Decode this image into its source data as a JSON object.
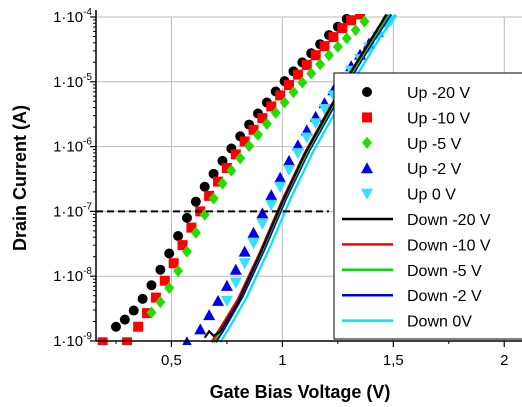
{
  "chart_data": {
    "type": "scatter",
    "title": "",
    "xlabel": "Gate Bias Voltage (V)",
    "ylabel": "Drain Current (A)",
    "xlim": [
      0.16,
      2.08
    ],
    "ylim_exponent": [
      -9,
      -4
    ],
    "y_scale": "log",
    "grid": true,
    "legend_position": "right",
    "x_ticks": [
      {
        "value": 0.5,
        "label": "0,5"
      },
      {
        "value": 1,
        "label": "1"
      },
      {
        "value": 1.5,
        "label": "1,5"
      },
      {
        "value": 2,
        "label": "2"
      }
    ],
    "y_ticks": [
      {
        "exp": -4,
        "base": "1·10",
        "sup": "-4"
      },
      {
        "exp": -5,
        "base": "1·10",
        "sup": "-5"
      },
      {
        "exp": -6,
        "base": "1·10",
        "sup": "-6"
      },
      {
        "exp": -7,
        "base": "1·10",
        "sup": "-7"
      },
      {
        "exp": -8,
        "base": "1·10",
        "sup": "-8"
      },
      {
        "exp": -9,
        "base": "1·10",
        "sup": "-9"
      }
    ],
    "threshold_line": {
      "y_exp": -7,
      "x_range": [
        0.16,
        1.21
      ]
    },
    "series": [
      {
        "name": "Up -20 V",
        "marker": "circle",
        "color": "#000000",
        "points": [
          [
            0.25,
            -8.78
          ],
          [
            0.29,
            -8.67
          ],
          [
            0.33,
            -8.53
          ],
          [
            0.37,
            -8.35
          ],
          [
            0.41,
            -8.14
          ],
          [
            0.45,
            -7.9
          ],
          [
            0.49,
            -7.65
          ],
          [
            0.53,
            -7.38
          ],
          [
            0.57,
            -7.1
          ],
          [
            0.61,
            -6.85
          ],
          [
            0.65,
            -6.62
          ],
          [
            0.69,
            -6.42
          ],
          [
            0.73,
            -6.22
          ],
          [
            0.77,
            -6.03
          ],
          [
            0.81,
            -5.84
          ],
          [
            0.85,
            -5.66
          ],
          [
            0.89,
            -5.49
          ],
          [
            0.93,
            -5.32
          ],
          [
            0.97,
            -5.15
          ],
          [
            1.01,
            -4.99
          ],
          [
            1.05,
            -4.84
          ],
          [
            1.09,
            -4.7
          ],
          [
            1.13,
            -4.56
          ],
          [
            1.17,
            -4.42
          ],
          [
            1.21,
            -4.28
          ],
          [
            1.25,
            -4.15
          ],
          [
            1.29,
            -4.03
          ]
        ]
      },
      {
        "name": "Up -10 V",
        "marker": "square",
        "color": "#ff0000",
        "points": [
          [
            0.19,
            -9.02
          ],
          [
            0.3,
            -9.02
          ],
          [
            0.35,
            -8.78
          ],
          [
            0.39,
            -8.57
          ],
          [
            0.43,
            -8.33
          ],
          [
            0.47,
            -8.07
          ],
          [
            0.51,
            -7.8
          ],
          [
            0.55,
            -7.52
          ],
          [
            0.59,
            -7.25
          ],
          [
            0.63,
            -7.0
          ],
          [
            0.67,
            -6.76
          ],
          [
            0.71,
            -6.54
          ],
          [
            0.75,
            -6.33
          ],
          [
            0.79,
            -6.12
          ],
          [
            0.83,
            -5.92
          ],
          [
            0.87,
            -5.74
          ],
          [
            0.91,
            -5.56
          ],
          [
            0.95,
            -5.38
          ],
          [
            0.99,
            -5.21
          ],
          [
            1.03,
            -5.05
          ],
          [
            1.07,
            -4.89
          ],
          [
            1.11,
            -4.74
          ],
          [
            1.15,
            -4.59
          ],
          [
            1.19,
            -4.45
          ],
          [
            1.23,
            -4.31
          ],
          [
            1.27,
            -4.17
          ],
          [
            1.31,
            -4.05
          ],
          [
            1.35,
            -3.96
          ]
        ]
      },
      {
        "name": "Up -5 V",
        "marker": "diamond",
        "color": "#22dd00",
        "points": [
          [
            0.41,
            -8.56
          ],
          [
            0.45,
            -8.4
          ],
          [
            0.49,
            -8.18
          ],
          [
            0.53,
            -7.92
          ],
          [
            0.57,
            -7.62
          ],
          [
            0.61,
            -7.33
          ],
          [
            0.65,
            -7.05
          ],
          [
            0.69,
            -6.8
          ],
          [
            0.73,
            -6.57
          ],
          [
            0.77,
            -6.37
          ],
          [
            0.81,
            -6.18
          ],
          [
            0.85,
            -5.99
          ],
          [
            0.89,
            -5.82
          ],
          [
            0.93,
            -5.65
          ],
          [
            0.97,
            -5.48
          ],
          [
            1.01,
            -5.32
          ],
          [
            1.05,
            -5.16
          ],
          [
            1.09,
            -5.01
          ],
          [
            1.13,
            -4.87
          ],
          [
            1.17,
            -4.73
          ],
          [
            1.21,
            -4.59
          ],
          [
            1.25,
            -4.46
          ],
          [
            1.29,
            -4.33
          ],
          [
            1.33,
            -4.2
          ],
          [
            1.37,
            -4.07
          ]
        ]
      },
      {
        "name": "Up -2 V",
        "marker": "triangle-up",
        "color": "#0000ee",
        "points": [
          [
            0.57,
            -9.02
          ],
          [
            0.63,
            -8.82
          ],
          [
            0.67,
            -8.6
          ],
          [
            0.71,
            -8.38
          ],
          [
            0.75,
            -8.15
          ],
          [
            0.79,
            -7.9
          ],
          [
            0.83,
            -7.62
          ],
          [
            0.87,
            -7.33
          ],
          [
            0.91,
            -7.03
          ],
          [
            0.95,
            -6.75
          ],
          [
            0.99,
            -6.48
          ],
          [
            1.03,
            -6.22
          ],
          [
            1.07,
            -5.98
          ],
          [
            1.11,
            -5.75
          ],
          [
            1.15,
            -5.54
          ],
          [
            1.19,
            -5.33
          ],
          [
            1.23,
            -5.13
          ],
          [
            1.27,
            -4.94
          ],
          [
            1.31,
            -4.76
          ],
          [
            1.35,
            -4.58
          ],
          [
            1.39,
            -4.41
          ],
          [
            1.43,
            -4.23
          ],
          [
            1.46,
            -4.06
          ]
        ]
      },
      {
        "name": "Up 0 V",
        "marker": "triangle-down",
        "color": "#33e0ff",
        "points": [
          [
            0.75,
            -8.38
          ],
          [
            0.79,
            -8.1
          ],
          [
            0.83,
            -7.8
          ],
          [
            0.87,
            -7.49
          ],
          [
            0.91,
            -7.19
          ],
          [
            0.95,
            -6.9
          ],
          [
            0.99,
            -6.62
          ],
          [
            1.03,
            -6.36
          ],
          [
            1.07,
            -6.1
          ],
          [
            1.11,
            -5.86
          ],
          [
            1.15,
            -5.64
          ],
          [
            1.19,
            -5.42
          ],
          [
            1.23,
            -5.21
          ],
          [
            1.27,
            -5.02
          ],
          [
            1.31,
            -4.83
          ],
          [
            1.35,
            -4.65
          ],
          [
            1.39,
            -4.47
          ],
          [
            1.43,
            -4.3
          ],
          [
            1.47,
            -4.13
          ],
          [
            1.49,
            -4.05
          ]
        ]
      },
      {
        "name": "Down -20 V",
        "marker": "line",
        "color": "#000000",
        "points": [
          [
            0.65,
            -8.95
          ],
          [
            0.67,
            -8.85
          ],
          [
            0.69,
            -8.92
          ],
          [
            0.72,
            -8.85
          ],
          [
            0.8,
            -8.4
          ],
          [
            0.9,
            -7.65
          ],
          [
            1.0,
            -6.85
          ],
          [
            1.1,
            -6.12
          ],
          [
            1.2,
            -5.5
          ],
          [
            1.3,
            -4.9
          ],
          [
            1.4,
            -4.35
          ],
          [
            1.47,
            -3.96
          ]
        ]
      },
      {
        "name": "Down -10 V",
        "marker": "line",
        "color": "#ff0000",
        "points": [
          [
            0.68,
            -9.02
          ],
          [
            0.72,
            -8.8
          ],
          [
            0.8,
            -8.35
          ],
          [
            0.9,
            -7.62
          ],
          [
            1.0,
            -6.82
          ],
          [
            1.1,
            -6.1
          ],
          [
            1.2,
            -5.48
          ],
          [
            1.3,
            -4.89
          ],
          [
            1.4,
            -4.34
          ],
          [
            1.47,
            -3.96
          ]
        ]
      },
      {
        "name": "Down -5 V",
        "marker": "line",
        "color": "#00dd00",
        "points": [
          [
            0.69,
            -9.02
          ],
          [
            0.73,
            -8.8
          ],
          [
            0.81,
            -8.33
          ],
          [
            0.91,
            -7.6
          ],
          [
            1.01,
            -6.8
          ],
          [
            1.11,
            -6.09
          ],
          [
            1.21,
            -5.47
          ],
          [
            1.31,
            -4.88
          ],
          [
            1.41,
            -4.33
          ],
          [
            1.48,
            -3.96
          ]
        ]
      },
      {
        "name": "Down -2 V",
        "marker": "line",
        "color": "#0000dd",
        "points": [
          [
            0.7,
            -9.02
          ],
          [
            0.74,
            -8.8
          ],
          [
            0.82,
            -8.32
          ],
          [
            0.92,
            -7.58
          ],
          [
            1.02,
            -6.78
          ],
          [
            1.12,
            -6.07
          ],
          [
            1.22,
            -5.46
          ],
          [
            1.32,
            -4.87
          ],
          [
            1.42,
            -4.32
          ],
          [
            1.49,
            -3.96
          ]
        ]
      },
      {
        "name": "Down 0V",
        "marker": "line",
        "color": "#00e5ee",
        "points": [
          [
            0.72,
            -9.02
          ],
          [
            0.76,
            -8.8
          ],
          [
            0.84,
            -8.32
          ],
          [
            0.94,
            -7.58
          ],
          [
            1.04,
            -6.78
          ],
          [
            1.14,
            -6.07
          ],
          [
            1.24,
            -5.46
          ],
          [
            1.34,
            -4.87
          ],
          [
            1.44,
            -4.32
          ],
          [
            1.51,
            -3.96
          ]
        ]
      }
    ]
  }
}
